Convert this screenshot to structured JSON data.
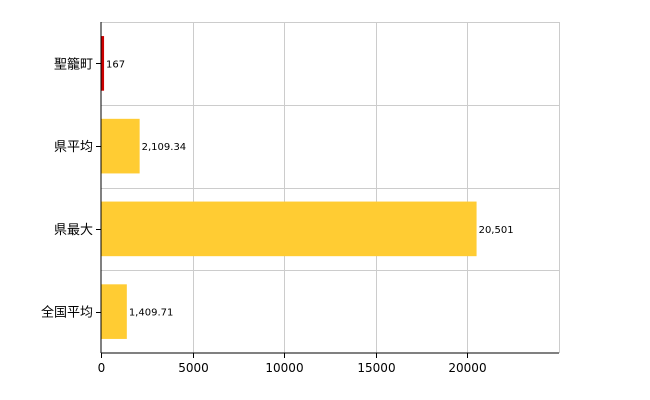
{
  "chart_data": {
    "type": "bar",
    "orientation": "horizontal",
    "categories": [
      "聖籠町",
      "県平均",
      "県最大",
      "全国平均"
    ],
    "values": [
      167,
      2109.34,
      20501,
      1409.71
    ],
    "data_labels": [
      "167",
      "2,109.34",
      "20,501",
      "1,409.71"
    ],
    "bar_colors": [
      "#cc0000",
      "#ffcc33",
      "#ffcc33",
      "#ffcc33"
    ],
    "xlim": [
      0,
      25000
    ],
    "x_ticks": [
      0,
      5000,
      10000,
      15000,
      20000
    ],
    "x_tick_labels": [
      "0",
      "5000",
      "10000",
      "15000",
      "20000"
    ],
    "grid": true,
    "grid_color": "#cccccc",
    "title": "",
    "xlabel": "",
    "ylabel": ""
  }
}
